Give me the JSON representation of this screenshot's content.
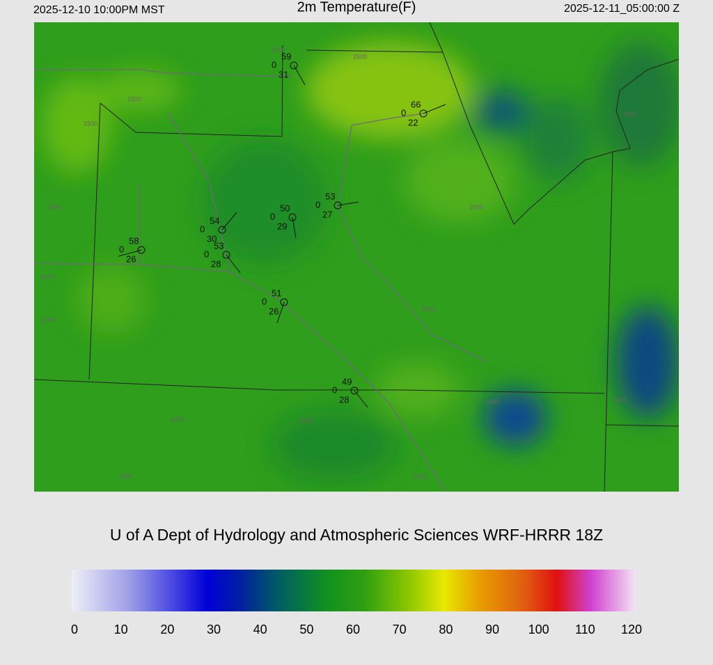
{
  "header": {
    "valid_local": "2025-12-10 10:00PM MST",
    "title": "2m Temperature(F)",
    "valid_utc": "2025-12-11_05:00:00 Z"
  },
  "stations": [
    {
      "temp": 59,
      "pressure": 0,
      "dewpoint": 31
    },
    {
      "temp": 66,
      "pressure": 0,
      "dewpoint": 22
    },
    {
      "temp": 53,
      "pressure": 0,
      "dewpoint": 27
    },
    {
      "temp": 50,
      "pressure": 0,
      "dewpoint": 29
    },
    {
      "temp": 54,
      "pressure": 0,
      "dewpoint": 30
    },
    {
      "temp": 58,
      "pressure": 0,
      "dewpoint": 26
    },
    {
      "temp": 53,
      "pressure": 0,
      "dewpoint": 28
    },
    {
      "temp": 51,
      "pressure": 0,
      "dewpoint": 26
    },
    {
      "temp": 49,
      "pressure": 0,
      "dewpoint": 28
    }
  ],
  "contour_labels": [
    "1500",
    "1500",
    "1500",
    "2000",
    "2000",
    "2000",
    "2000",
    "2000",
    "2500",
    "2500",
    "2500",
    "2500",
    "3000",
    "3000",
    "3000",
    "3000"
  ],
  "footer": "U of A Dept of Hydrology and Atmospheric Sciences WRF-HRRR 18Z",
  "colorbar": {
    "range": [
      0,
      120
    ],
    "ticks": [
      0,
      10,
      20,
      30,
      40,
      50,
      60,
      70,
      80,
      90,
      100,
      110,
      120
    ]
  }
}
